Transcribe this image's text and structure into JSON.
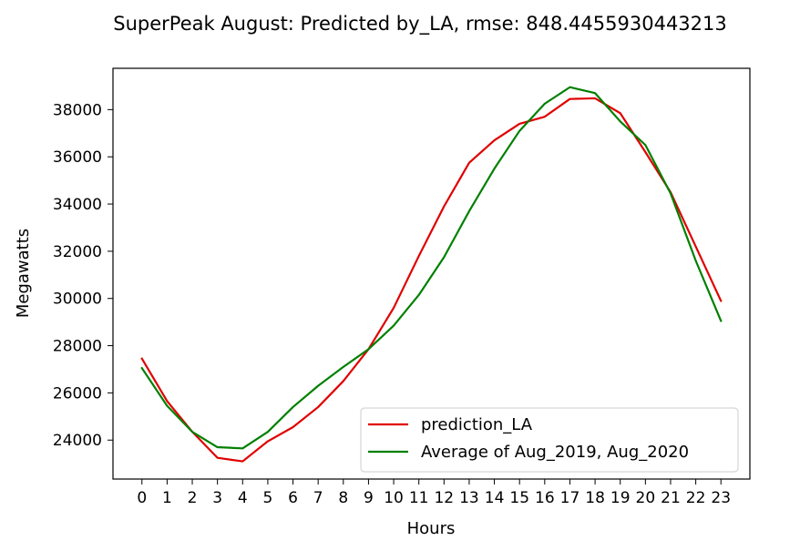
{
  "chart_data": {
    "type": "line",
    "title": "SuperPeak August: Predicted by_LA, rmse: 848.4455930443213",
    "xlabel": "Hours",
    "ylabel": "Megawatts",
    "x": [
      0,
      1,
      2,
      3,
      4,
      5,
      6,
      7,
      8,
      9,
      10,
      11,
      12,
      13,
      14,
      15,
      16,
      17,
      18,
      19,
      20,
      21,
      22,
      23
    ],
    "x_tick_labels": [
      "0",
      "1",
      "2",
      "3",
      "4",
      "5",
      "6",
      "7",
      "8",
      "9",
      "10",
      "11",
      "12",
      "13",
      "14",
      "15",
      "16",
      "17",
      "18",
      "19",
      "20",
      "21",
      "22",
      "23"
    ],
    "y_ticks": [
      24000,
      26000,
      28000,
      30000,
      32000,
      34000,
      36000,
      38000
    ],
    "y_tick_labels": [
      "24000",
      "26000",
      "28000",
      "30000",
      "32000",
      "34000",
      "36000",
      "38000"
    ],
    "xlim": [
      -1.15,
      24.15
    ],
    "ylim": [
      22350,
      39750
    ],
    "grid": false,
    "legend_position": "lower right",
    "series": [
      {
        "name": "prediction_LA",
        "color": "#e00000",
        "values": [
          27450,
          25650,
          24350,
          23250,
          23100,
          23950,
          24550,
          25400,
          26500,
          27850,
          29600,
          31800,
          33900,
          35750,
          36700,
          37400,
          37700,
          38450,
          38480,
          37850,
          36200,
          34500,
          32200,
          29900
        ]
      },
      {
        "name": "Average of Aug_2019, Aug_2020",
        "color": "#008000",
        "values": [
          27050,
          25450,
          24350,
          23700,
          23650,
          24350,
          25400,
          26300,
          27100,
          27850,
          28850,
          30150,
          31750,
          33700,
          35500,
          37100,
          38250,
          38950,
          38700,
          37500,
          36500,
          34450,
          31600,
          29050
        ]
      }
    ]
  }
}
